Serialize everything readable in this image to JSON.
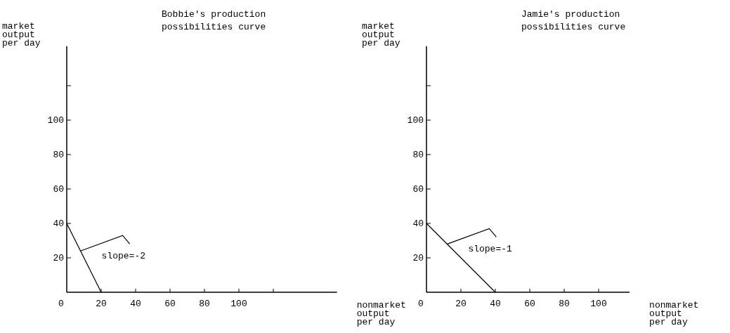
{
  "chart_data": [
    {
      "type": "line",
      "title": "Bobbie's production\npossibilities curve",
      "xlabel": "nonmarket\noutput\nper day",
      "ylabel": "market\noutput\nper day",
      "x": [
        0,
        20
      ],
      "values": [
        40,
        0
      ],
      "color": "#000000",
      "xlim": [
        0,
        157
      ],
      "ylim": [
        0,
        143
      ],
      "xticks": [
        0,
        20,
        40,
        60,
        80,
        100,
        {
          "value": 120,
          "label": null
        }
      ],
      "yticks": [
        20,
        40,
        60,
        80,
        100,
        {
          "value": 120,
          "label": null
        }
      ],
      "annotations": [
        {
          "text": "slope=-2",
          "x": 8,
          "y": 24
        }
      ]
    },
    {
      "type": "line",
      "title": "Jamie's production\npossibilities curve",
      "xlabel": "nonmarket\noutput\nper day",
      "ylabel": "market\noutput\nper day",
      "x": [
        0,
        40
      ],
      "values": [
        40,
        0
      ],
      "color": "#000000",
      "xlim": [
        0,
        118
      ],
      "ylim": [
        0,
        143
      ],
      "xticks": [
        0,
        20,
        40,
        60,
        80,
        100
      ],
      "yticks": [
        20,
        40,
        60,
        80,
        100,
        {
          "value": 120,
          "label": null
        }
      ],
      "annotations": [
        {
          "text": "slope=-1",
          "x": 12,
          "y": 28
        }
      ]
    }
  ]
}
